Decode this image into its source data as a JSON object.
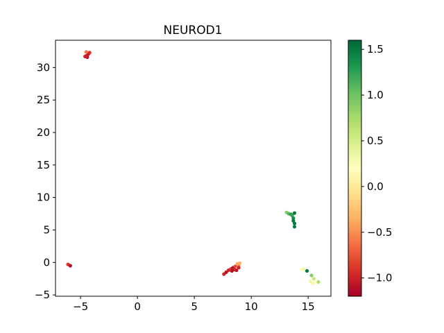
{
  "chart_data": {
    "type": "scatter",
    "title": "NEUROD1",
    "xlabel": "",
    "ylabel": "",
    "xlim": [
      -7.2,
      17.0
    ],
    "ylim": [
      -5.2,
      34.2
    ],
    "x_ticks": [
      -5,
      0,
      5,
      10,
      15
    ],
    "y_ticks": [
      -5,
      0,
      5,
      10,
      15,
      20,
      25,
      30
    ],
    "x_tick_labels": [
      "−5",
      "0",
      "5",
      "10",
      "15"
    ],
    "y_tick_labels": [
      "−5",
      "0",
      "5",
      "10",
      "15",
      "20",
      "25",
      "30"
    ],
    "grid": false,
    "colormap": "RdYlGn",
    "color_range": [
      -1.2,
      1.6
    ],
    "colorbar_ticks": [
      1.5,
      1.0,
      0.5,
      0.0,
      -0.5,
      -1.0
    ],
    "colorbar_tick_labels": [
      "1.5",
      "1.0",
      "0.5",
      "0.0",
      "−0.5",
      "−1.0"
    ],
    "points": [
      {
        "x": -4.6,
        "y": 31.7,
        "c": -1.0
      },
      {
        "x": -4.4,
        "y": 31.6,
        "c": -1.1
      },
      {
        "x": -4.3,
        "y": 32.1,
        "c": -1.1
      },
      {
        "x": -4.5,
        "y": 32.4,
        "c": -0.6
      },
      {
        "x": -4.2,
        "y": 32.3,
        "c": -0.9
      },
      {
        "x": -4.5,
        "y": 31.8,
        "c": -1.0
      },
      {
        "x": -6.1,
        "y": -0.3,
        "c": -0.9
      },
      {
        "x": -5.9,
        "y": -0.5,
        "c": -1.1
      },
      {
        "x": 7.6,
        "y": -1.8,
        "c": -1.0
      },
      {
        "x": 7.8,
        "y": -1.5,
        "c": -1.1
      },
      {
        "x": 8.0,
        "y": -1.2,
        "c": -1.0
      },
      {
        "x": 8.2,
        "y": -1.0,
        "c": -0.9
      },
      {
        "x": 8.4,
        "y": -0.8,
        "c": -1.1
      },
      {
        "x": 8.6,
        "y": -0.6,
        "c": -0.8
      },
      {
        "x": 8.7,
        "y": -1.2,
        "c": -1.1
      },
      {
        "x": 8.9,
        "y": -0.4,
        "c": -0.6
      },
      {
        "x": 8.8,
        "y": -0.2,
        "c": -0.4
      },
      {
        "x": 9.0,
        "y": -0.1,
        "c": -0.3
      },
      {
        "x": 8.5,
        "y": -1.1,
        "c": -1.0
      },
      {
        "x": 8.3,
        "y": -1.3,
        "c": -1.1
      },
      {
        "x": 8.9,
        "y": -0.8,
        "c": -1.0
      },
      {
        "x": 13.1,
        "y": 7.7,
        "c": 0.9
      },
      {
        "x": 13.3,
        "y": 7.5,
        "c": 1.1
      },
      {
        "x": 13.5,
        "y": 7.4,
        "c": 1.3
      },
      {
        "x": 13.6,
        "y": 7.2,
        "c": 1.2
      },
      {
        "x": 13.7,
        "y": 6.8,
        "c": 1.4
      },
      {
        "x": 13.7,
        "y": 6.4,
        "c": 1.5
      },
      {
        "x": 13.8,
        "y": 6.0,
        "c": 1.5
      },
      {
        "x": 13.8,
        "y": 5.5,
        "c": 1.5
      },
      {
        "x": 13.8,
        "y": 7.6,
        "c": 1.5
      },
      {
        "x": 14.4,
        "y": -1.1,
        "c": 0.2
      },
      {
        "x": 14.6,
        "y": -1.0,
        "c": 0.3
      },
      {
        "x": 14.9,
        "y": -1.3,
        "c": 1.5
      },
      {
        "x": 15.3,
        "y": -2.0,
        "c": 0.9
      },
      {
        "x": 15.5,
        "y": -2.5,
        "c": 0.6
      },
      {
        "x": 15.2,
        "y": -2.9,
        "c": 0.3
      },
      {
        "x": 15.6,
        "y": -3.1,
        "c": 0.2
      },
      {
        "x": 15.9,
        "y": -3.0,
        "c": 0.7
      },
      {
        "x": 15.4,
        "y": -3.2,
        "c": 0.1
      }
    ]
  }
}
